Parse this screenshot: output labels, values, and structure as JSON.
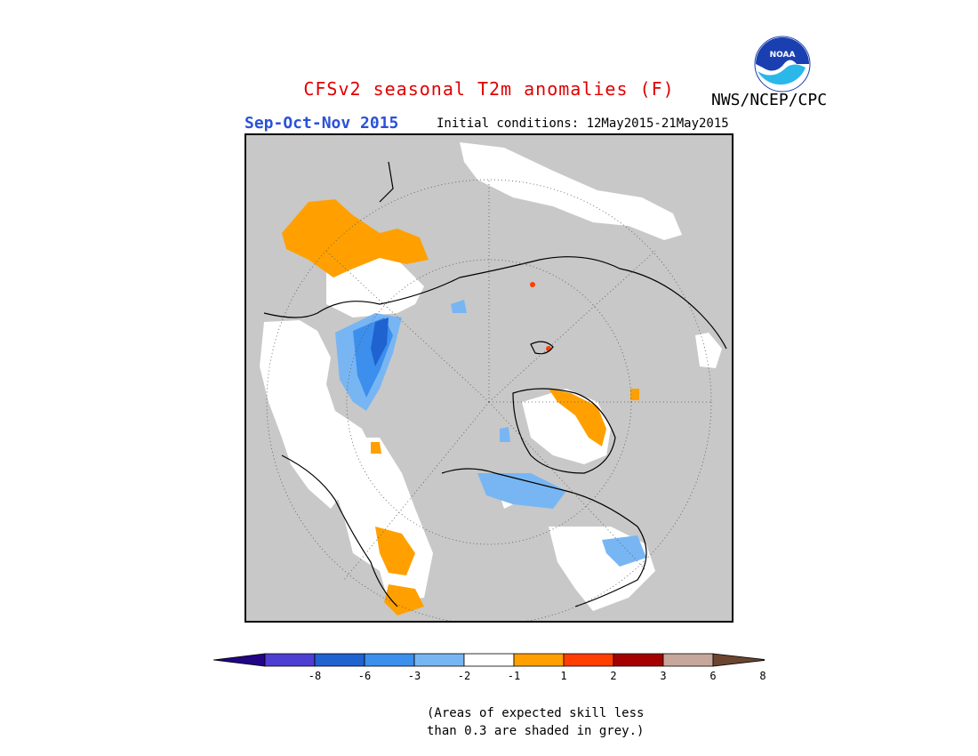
{
  "header": {
    "title": "CFSv2 seasonal T2m anomalies (F)",
    "season": "Sep-Oct-Nov 2015",
    "initial_conditions": "Initial conditions: 12May2015-21May2015",
    "org": "NWS/NCEP/CPC",
    "logo_text": "NOAA"
  },
  "legend": {
    "colors": [
      "#230386",
      "#4c3fd2",
      "#1f62d0",
      "#3c8fec",
      "#78b6f3",
      "#ffffff",
      "#ffa000",
      "#ff3e00",
      "#a50000",
      "#c7a79c",
      "#6b4530"
    ],
    "ticks": [
      "-8",
      "-6",
      "-3",
      "-2",
      "-1",
      "1",
      "2",
      "3",
      "6",
      "8"
    ]
  },
  "note": {
    "line1": "(Areas of expected skill less",
    "line2": "than 0.3 are shaded in grey.)"
  },
  "colors": {
    "skill_grey": "#c8c8c8",
    "title_red": "#e00000",
    "season_blue": "#2a52d8"
  }
}
